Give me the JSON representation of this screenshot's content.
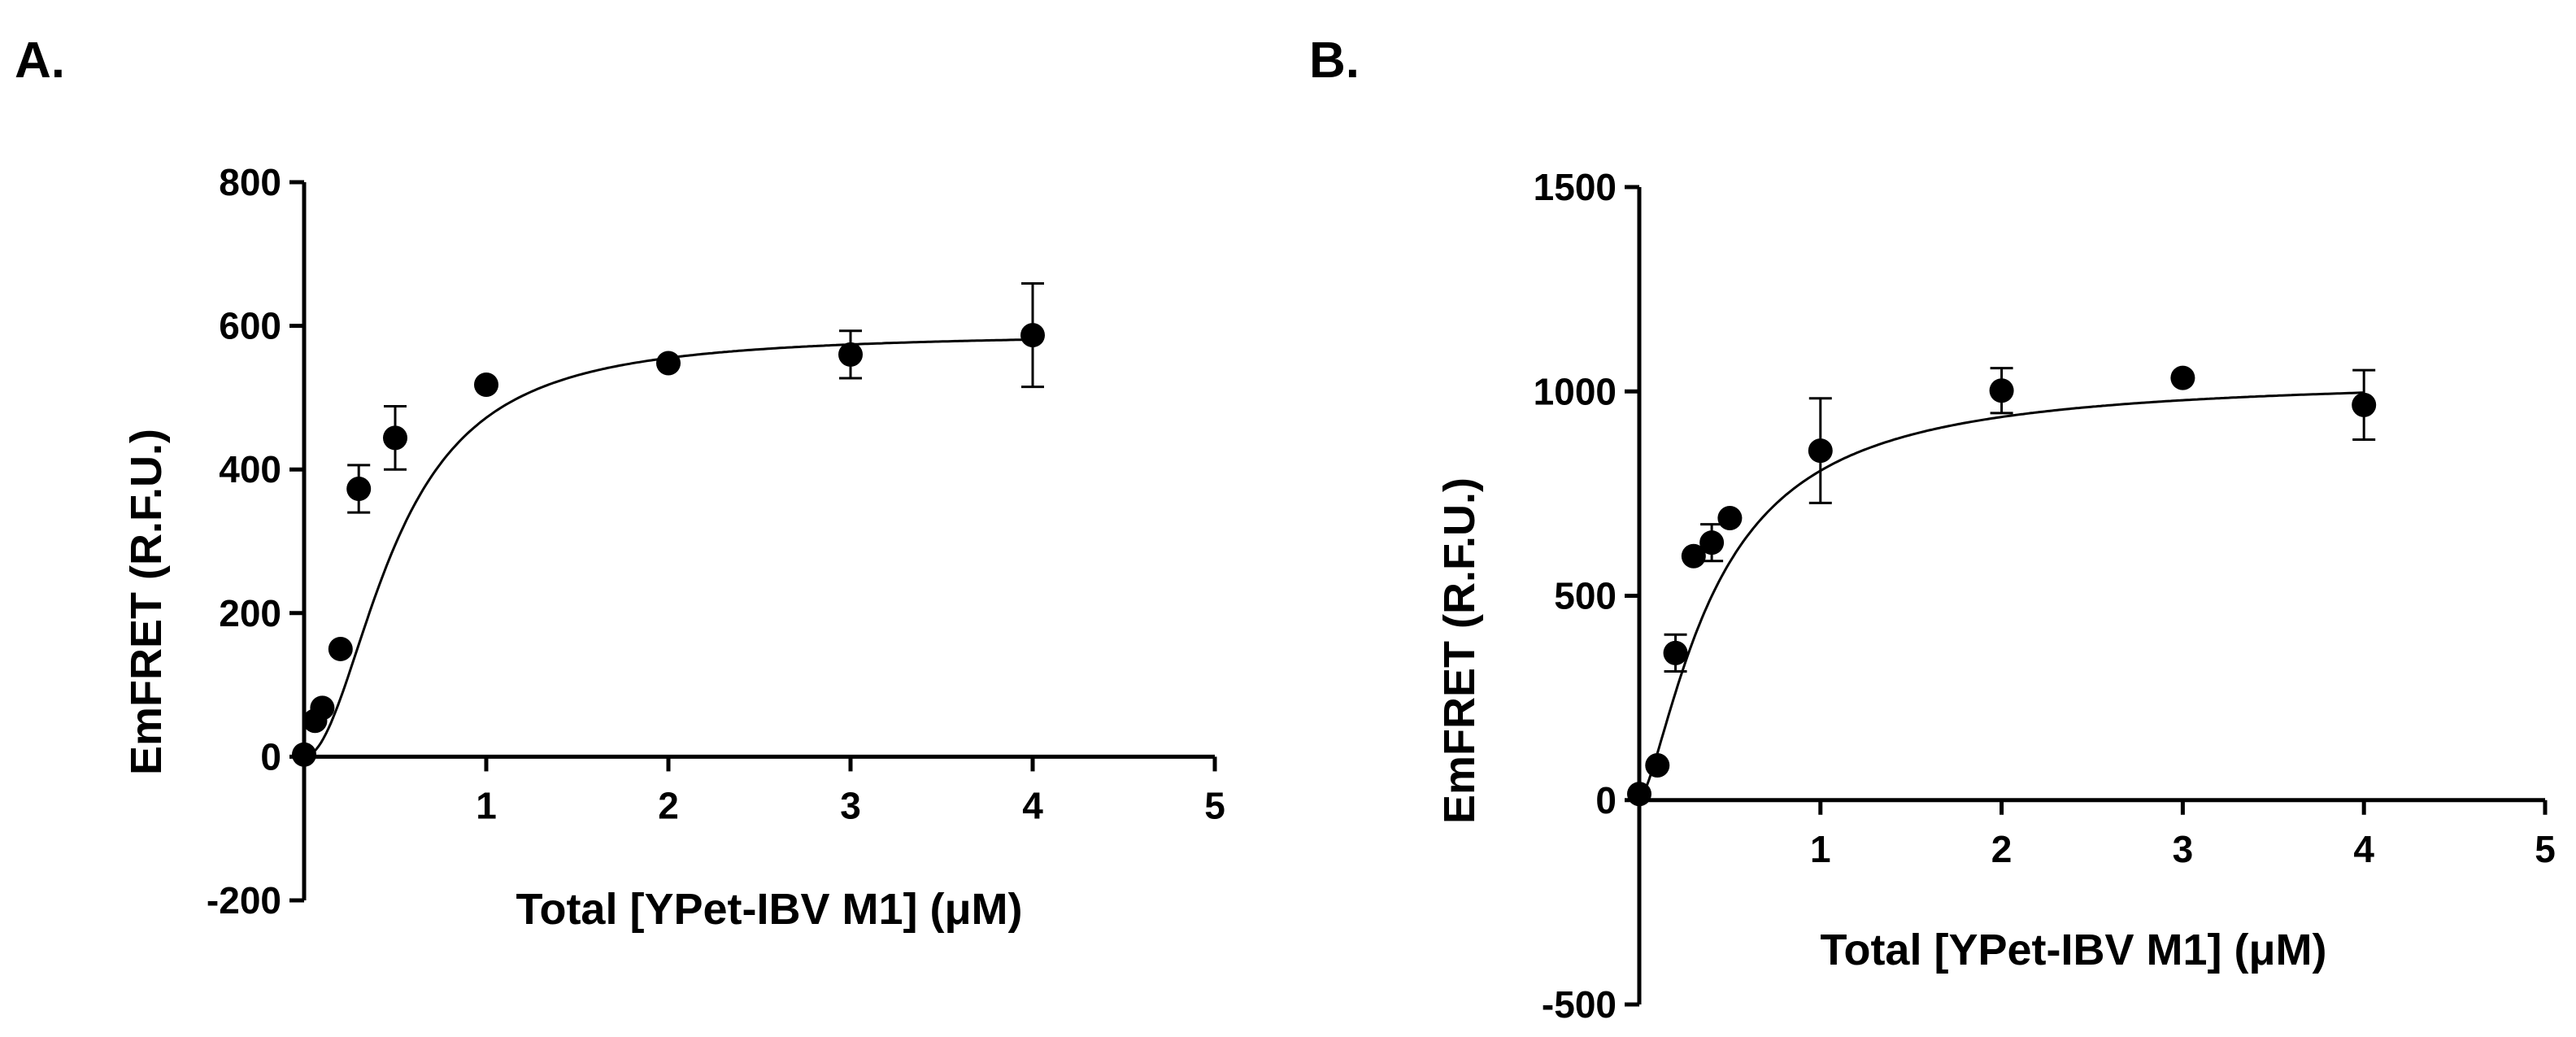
{
  "charts": [
    {
      "panel_label": "A.",
      "type": "scatter",
      "xlabel": "Total [YPet-IBV M1] (μM)",
      "ylabel": "EmFRET (R.F.U.)",
      "xlim": [
        0,
        5
      ],
      "ylim": [
        -200,
        800
      ],
      "xticks": [
        "1",
        "2",
        "3",
        "4",
        "5"
      ],
      "yticks": [
        "-200",
        "0",
        "200",
        "400",
        "600",
        "800"
      ],
      "points": [
        {
          "x": 0.0,
          "y": 3,
          "err": 0
        },
        {
          "x": 0.06,
          "y": 50,
          "err": 0
        },
        {
          "x": 0.1,
          "y": 68,
          "err": 0
        },
        {
          "x": 0.2,
          "y": 150,
          "err": 0
        },
        {
          "x": 0.3,
          "y": 373,
          "err": 33
        },
        {
          "x": 0.5,
          "y": 444,
          "err": 44
        },
        {
          "x": 1.0,
          "y": 518,
          "err": 0
        },
        {
          "x": 2.0,
          "y": 548,
          "err": 0
        },
        {
          "x": 3.0,
          "y": 560,
          "err": 33
        },
        {
          "x": 4.0,
          "y": 587,
          "err": 72
        }
      ],
      "fit": {
        "bmax": 590,
        "scale": 0.5,
        "exponent": 2.0
      },
      "color": "#000000"
    },
    {
      "panel_label": "B.",
      "type": "scatter",
      "xlabel": "Total [YPet-IBV M1] (μM)",
      "ylabel": "EmFRET (R.F.U.)",
      "xlim": [
        0,
        5
      ],
      "ylim": [
        -500,
        1500
      ],
      "xticks": [
        "1",
        "2",
        "3",
        "4",
        "5"
      ],
      "yticks": [
        "-500",
        "0",
        "500",
        "1000",
        "1500"
      ],
      "points": [
        {
          "x": 0.0,
          "y": 15,
          "err": 0
        },
        {
          "x": 0.1,
          "y": 85,
          "err": 0
        },
        {
          "x": 0.2,
          "y": 360,
          "err": 45
        },
        {
          "x": 0.3,
          "y": 597,
          "err": 0
        },
        {
          "x": 0.4,
          "y": 630,
          "err": 45
        },
        {
          "x": 0.5,
          "y": 690,
          "err": 0
        },
        {
          "x": 1.0,
          "y": 855,
          "err": 128
        },
        {
          "x": 2.0,
          "y": 1002,
          "err": 55
        },
        {
          "x": 3.0,
          "y": 1033,
          "err": 0
        },
        {
          "x": 4.0,
          "y": 967,
          "err": 85
        }
      ],
      "fit": {
        "bmax": 1035,
        "scale": 0.42,
        "exponent": 1.45
      },
      "color": "#000000"
    }
  ]
}
